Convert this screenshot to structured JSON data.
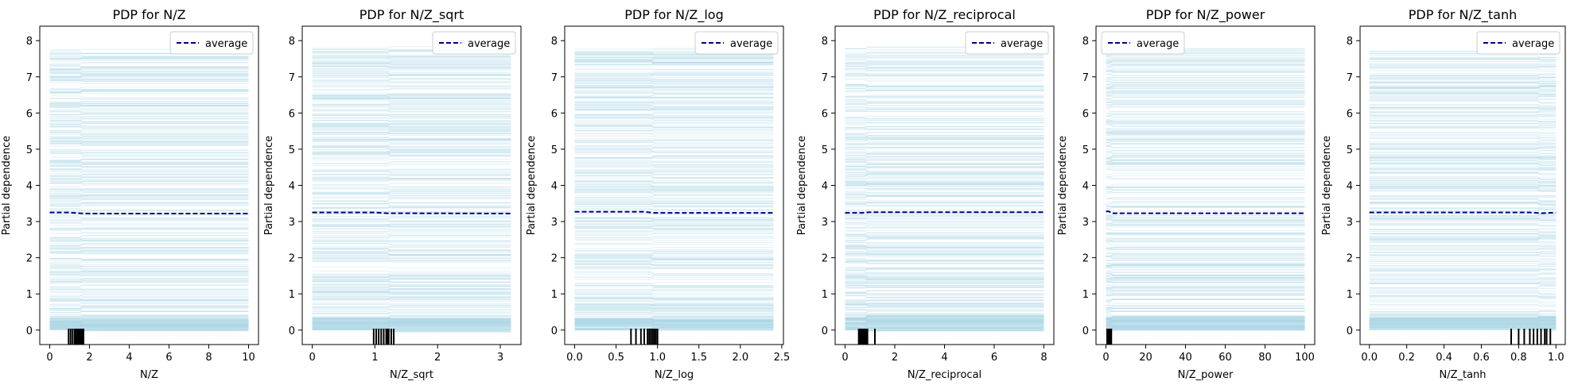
{
  "chart_data": [
    {
      "type": "line",
      "title": "PDP for N/Z",
      "xlabel": "N/Z",
      "ylabel": "Partial dependence",
      "xlim": [
        -0.5,
        10.5
      ],
      "ylim": [
        -0.4,
        8.4
      ],
      "xticks": [
        0,
        2,
        4,
        6,
        8,
        10
      ],
      "xtick_labels": [
        "0",
        "2",
        "4",
        "6",
        "8",
        "10"
      ],
      "yticks": [
        0,
        1,
        2,
        3,
        4,
        5,
        6,
        7,
        8
      ],
      "ytick_labels": [
        "0",
        "1",
        "2",
        "3",
        "4",
        "5",
        "6",
        "7",
        "8"
      ],
      "legend": "upper right",
      "grid": false,
      "series": [
        {
          "name": "average",
          "x": [
            0,
            1.0,
            1.5,
            2,
            10
          ],
          "values": [
            3.25,
            3.25,
            3.23,
            3.22,
            3.22
          ]
        }
      ],
      "ice_lines": {
        "count": 400,
        "x": [
          0,
          10
        ],
        "y_range": [
          0,
          7.8
        ],
        "step_x": 1.5
      },
      "rug": [
        0.95,
        1.05,
        1.15,
        1.25,
        1.3,
        1.35,
        1.4,
        1.45,
        1.5,
        1.55,
        1.6,
        1.65,
        1.7
      ]
    },
    {
      "type": "line",
      "title": "PDP for N/Z_sqrt",
      "xlabel": "N/Z_sqrt",
      "ylabel": "Partial dependence",
      "xlim": [
        -0.16,
        3.33
      ],
      "ylim": [
        -0.4,
        8.4
      ],
      "xticks": [
        0,
        1,
        2,
        3
      ],
      "xtick_labels": [
        "0",
        "1",
        "2",
        "3"
      ],
      "yticks": [
        0,
        1,
        2,
        3,
        4,
        5,
        6,
        7,
        8
      ],
      "ytick_labels": [
        "0",
        "1",
        "2",
        "3",
        "4",
        "5",
        "6",
        "7",
        "8"
      ],
      "legend": "upper right",
      "grid": false,
      "series": [
        {
          "name": "average",
          "x": [
            0,
            1.0,
            1.2,
            3.17
          ],
          "values": [
            3.25,
            3.25,
            3.23,
            3.22
          ]
        }
      ],
      "ice_lines": {
        "count": 400,
        "x": [
          0,
          3.17
        ],
        "y_range": [
          0,
          7.8
        ],
        "step_x": 1.2
      },
      "rug": [
        0.98,
        1.02,
        1.06,
        1.1,
        1.14,
        1.18,
        1.2,
        1.22,
        1.26,
        1.3
      ]
    },
    {
      "type": "line",
      "title": "PDP for N/Z_log",
      "xlabel": "N/Z_log",
      "ylabel": "Partial dependence",
      "xlim": [
        -0.12,
        2.52
      ],
      "ylim": [
        -0.4,
        8.4
      ],
      "xticks": [
        0.0,
        0.5,
        1.0,
        1.5,
        2.0,
        2.5
      ],
      "xtick_labels": [
        "0.0",
        "0.5",
        "1.0",
        "1.5",
        "2.0",
        "2.5"
      ],
      "yticks": [
        0,
        1,
        2,
        3,
        4,
        5,
        6,
        7,
        8
      ],
      "ytick_labels": [
        "0",
        "1",
        "2",
        "3",
        "4",
        "5",
        "6",
        "7",
        "8"
      ],
      "legend": "upper right",
      "grid": false,
      "series": [
        {
          "name": "average",
          "x": [
            0,
            0.85,
            0.95,
            2.4
          ],
          "values": [
            3.27,
            3.27,
            3.24,
            3.24
          ]
        }
      ],
      "ice_lines": {
        "count": 400,
        "x": [
          0,
          2.4
        ],
        "y_range": [
          0,
          7.8
        ],
        "step_x": 0.92
      },
      "rug": [
        0.68,
        0.74,
        0.8,
        0.84,
        0.88,
        0.9,
        0.92,
        0.94,
        0.96,
        0.98,
        1.0
      ]
    },
    {
      "type": "line",
      "title": "PDP for N/Z_reciprocal",
      "xlabel": "N/Z_reciprocal",
      "ylabel": "Partial dependence",
      "xlim": [
        -0.4,
        8.4
      ],
      "ylim": [
        -0.4,
        8.4
      ],
      "xticks": [
        0,
        2,
        4,
        6,
        8
      ],
      "xtick_labels": [
        "0",
        "2",
        "4",
        "6",
        "8"
      ],
      "yticks": [
        0,
        1,
        2,
        3,
        4,
        5,
        6,
        7,
        8
      ],
      "ytick_labels": [
        "0",
        "1",
        "2",
        "3",
        "4",
        "5",
        "6",
        "7",
        "8"
      ],
      "legend": "upper right",
      "grid": false,
      "series": [
        {
          "name": "average",
          "x": [
            0,
            0.7,
            1.0,
            8
          ],
          "values": [
            3.24,
            3.24,
            3.26,
            3.26
          ]
        }
      ],
      "ice_lines": {
        "count": 400,
        "x": [
          0,
          8
        ],
        "y_range": [
          0,
          7.8
        ],
        "step_x": 0.8
      },
      "rug": [
        0.55,
        0.6,
        0.65,
        0.7,
        0.75,
        0.8,
        0.85,
        0.9,
        1.2
      ]
    },
    {
      "type": "line",
      "title": "PDP for N/Z_power",
      "xlabel": "N/Z_power",
      "ylabel": "Partial dependence",
      "xlim": [
        -5,
        105
      ],
      "ylim": [
        -0.4,
        8.4
      ],
      "xticks": [
        0,
        20,
        40,
        60,
        80,
        100
      ],
      "xtick_labels": [
        "0",
        "20",
        "40",
        "60",
        "80",
        "100"
      ],
      "yticks": [
        0,
        1,
        2,
        3,
        4,
        5,
        6,
        7,
        8
      ],
      "ytick_labels": [
        "0",
        "1",
        "2",
        "3",
        "4",
        "5",
        "6",
        "7",
        "8"
      ],
      "legend": "upper left",
      "grid": false,
      "series": [
        {
          "name": "average",
          "x": [
            0,
            1.5,
            3,
            100
          ],
          "values": [
            3.28,
            3.28,
            3.23,
            3.23
          ]
        }
      ],
      "ice_lines": {
        "count": 400,
        "x": [
          0,
          100
        ],
        "y_range": [
          0,
          7.8
        ],
        "step_x": 2
      },
      "rug": [
        0.6,
        0.9,
        1.2,
        1.5,
        1.8,
        2.1,
        2.4,
        2.7
      ]
    },
    {
      "type": "line",
      "title": "PDP for N/Z_tanh",
      "xlabel": "N/Z_tanh",
      "ylabel": "Partial dependence",
      "xlim": [
        -0.05,
        1.05
      ],
      "ylim": [
        -0.4,
        8.4
      ],
      "xticks": [
        0.0,
        0.2,
        0.4,
        0.6,
        0.8,
        1.0
      ],
      "xtick_labels": [
        "0.0",
        "0.2",
        "0.4",
        "0.6",
        "0.8",
        "1.0"
      ],
      "yticks": [
        0,
        1,
        2,
        3,
        4,
        5,
        6,
        7,
        8
      ],
      "ytick_labels": [
        "0",
        "1",
        "2",
        "3",
        "4",
        "5",
        "6",
        "7",
        "8"
      ],
      "legend": "upper right",
      "grid": false,
      "series": [
        {
          "name": "average",
          "x": [
            0,
            0.86,
            0.92,
            1.0
          ],
          "values": [
            3.25,
            3.25,
            3.23,
            3.25
          ]
        }
      ],
      "ice_lines": {
        "count": 400,
        "x": [
          0,
          1.0
        ],
        "y_range": [
          0,
          7.8
        ],
        "step_x": 0.9
      },
      "rug": [
        0.76,
        0.8,
        0.83,
        0.86,
        0.88,
        0.9,
        0.92,
        0.94,
        0.95,
        0.97
      ]
    }
  ],
  "colors": {
    "average": "#00008b",
    "ice": "#add8e6",
    "rug": "#000000",
    "axes": "#000000"
  }
}
